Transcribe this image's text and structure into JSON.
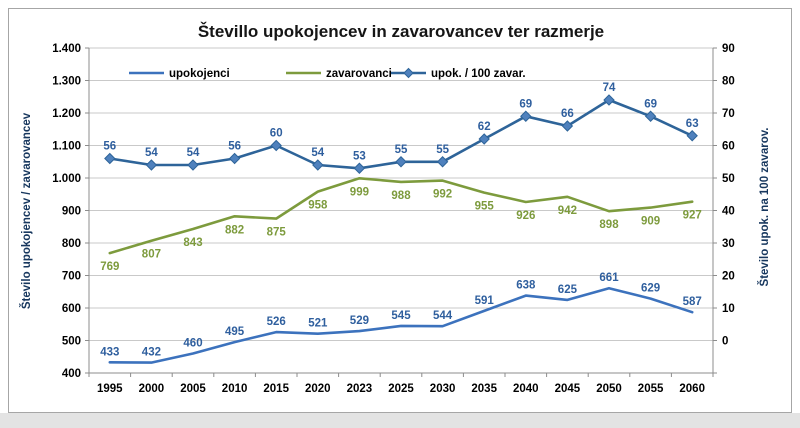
{
  "page": {
    "background": "#ffffff",
    "frame_border_color": "#a6a6a6",
    "bottom_strip_color": "#e3e3e3"
  },
  "chart_data": {
    "type": "line",
    "title": "Števillo upokojencev in zavarovancev ter razmerje",
    "categories": [
      "1995",
      "2000",
      "2005",
      "2010",
      "2015",
      "2020",
      "2023",
      "2025",
      "2030",
      "2035",
      "2040",
      "2045",
      "2050",
      "2055",
      "2060"
    ],
    "series": [
      {
        "name": "upokojenci",
        "axis": "left",
        "color": "#3c72bd",
        "label_color": "#2f5f9e",
        "marker": "none",
        "label_position": "above",
        "values": [
          433,
          432,
          460,
          495,
          526,
          521,
          529,
          545,
          544,
          591,
          638,
          625,
          661,
          629,
          587
        ]
      },
      {
        "name": "zavarovanci",
        "axis": "left",
        "color": "#7d9b3d",
        "label_color": "#7d9b3d",
        "marker": "none",
        "label_position": "below",
        "values": [
          769,
          807,
          843,
          882,
          875,
          958,
          999,
          988,
          992,
          955,
          926,
          942,
          898,
          909,
          927
        ]
      },
      {
        "name": "upok. / 100 zavar.",
        "axis": "right",
        "color": "#2e6499",
        "label_color": "#2f5f9e",
        "marker": "diamond",
        "marker_fill": "#4f81bd",
        "label_position": "above",
        "values": [
          56,
          54,
          54,
          56,
          60,
          54,
          53,
          55,
          55,
          62,
          69,
          66,
          74,
          69,
          63
        ]
      }
    ],
    "left_axis": {
      "title": "Število upokojencev / zavarovancev",
      "min": 400,
      "max": 1400,
      "step": 100,
      "tick_labels_top_to_bottom": [
        "1.400",
        "1.300",
        "1.200",
        "1.100",
        "1.000",
        "900",
        "800",
        "700",
        "600",
        "500",
        "400"
      ]
    },
    "right_axis": {
      "title": "Število upok. na 100 zavarov.",
      "min": -10,
      "max": 90,
      "step": 10,
      "tick_labels_top_to_bottom": [
        "90",
        "80",
        "70",
        "60",
        "50",
        "40",
        "30",
        "20",
        "10",
        "0"
      ]
    },
    "grid": true,
    "legend_position": "top-inside",
    "styles": {
      "title_color": "#151515",
      "axis_title_color": "#17375e",
      "tick_label_color": "#000000",
      "legend_text_color": "#000000",
      "gridline_color": "#c9c9c9",
      "axis_line_color": "#8c8c8c"
    }
  }
}
